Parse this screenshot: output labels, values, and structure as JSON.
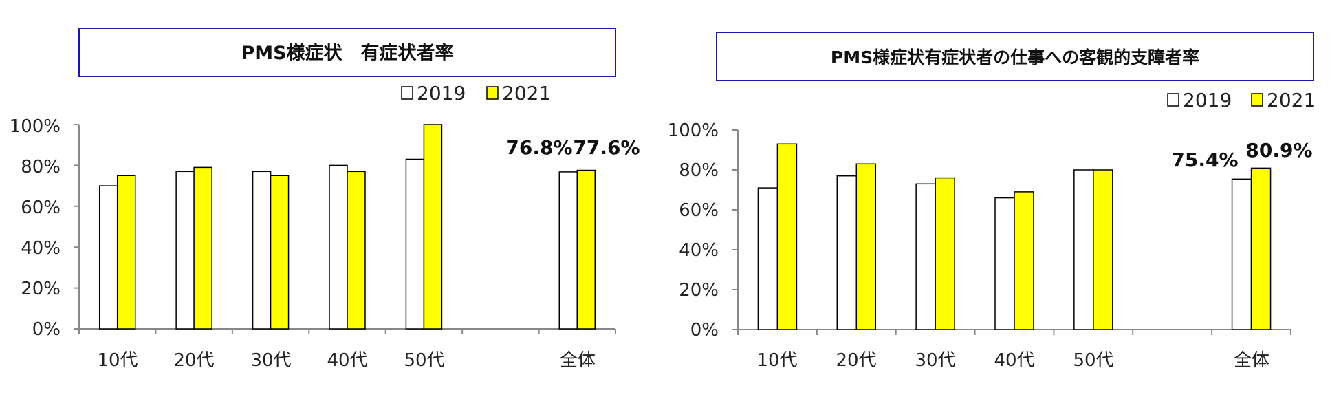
{
  "chart_data": [
    {
      "type": "bar",
      "title": "PMS様症状　有症状者率",
      "categories": [
        "10代",
        "20代",
        "30代",
        "40代",
        "50代",
        "",
        "全体"
      ],
      "series": [
        {
          "name": "2019",
          "values": [
            70,
            77,
            77,
            80,
            83,
            null,
            76.8
          ]
        },
        {
          "name": "2021",
          "values": [
            75,
            79,
            75,
            77,
            100,
            null,
            77.6
          ]
        }
      ],
      "yticks": [
        "0%",
        "20%",
        "40%",
        "60%",
        "80%",
        "100%"
      ],
      "ylim": [
        0,
        100
      ],
      "legend": "top-right",
      "annotations": [
        "76.8%",
        "77.6%"
      ]
    },
    {
      "type": "bar",
      "title": "PMS様症状有症状者の仕事への客観的支障者率",
      "categories": [
        "10代",
        "20代",
        "30代",
        "40代",
        "50代",
        "",
        "全体"
      ],
      "series": [
        {
          "name": "2019",
          "values": [
            71,
            77,
            73,
            66,
            80,
            null,
            75.4
          ]
        },
        {
          "name": "2021",
          "values": [
            93,
            83,
            76,
            69,
            80,
            null,
            80.9
          ]
        }
      ],
      "yticks": [
        "0%",
        "20%",
        "40%",
        "60%",
        "80%",
        "100%"
      ],
      "ylim": [
        0,
        100
      ],
      "legend": "top-right",
      "annotations": [
        "75.4%",
        "80.9%"
      ]
    }
  ],
  "colors": {
    "series_2019": "#ffffff",
    "series_2021": "#ffff00",
    "title_border": "#1a1aa6"
  }
}
